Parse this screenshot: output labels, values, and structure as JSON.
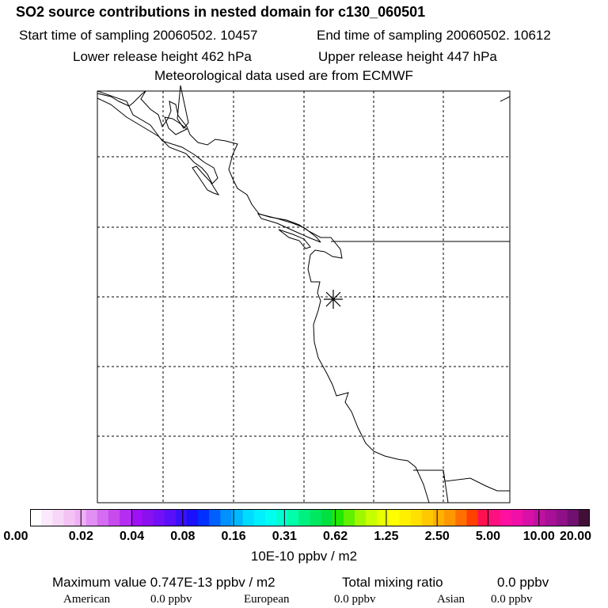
{
  "header": {
    "title": "SO2 source contributions in nested domain for c130_060501",
    "start_label": "Start time of sampling 20060502. 10457",
    "end_label": "End time of sampling 20060502. 10612",
    "lower_label": "Lower release height  462 hPa",
    "upper_label": "Upper release height  447 hPa",
    "met_label": "Meteorological data used are from ECMWF"
  },
  "map": {
    "marker": "asterisk-release-point",
    "line_color": "#000000"
  },
  "legend": {
    "colors": [
      "#ffffff",
      "#fbe9fb",
      "#f7d7f7",
      "#f3c3f3",
      "#efaff7",
      "#e28ff4",
      "#d56cf1",
      "#c84bee",
      "#b52df0",
      "#a010f5",
      "#8a10f0",
      "#7410f5",
      "#5a10f8",
      "#3a10fa",
      "#1a10fb",
      "#0030ff",
      "#0060ff",
      "#0090ff",
      "#00b8ff",
      "#00dcff",
      "#00f0ff",
      "#00fff0",
      "#00ffd0",
      "#00ffa8",
      "#00f080",
      "#00e860",
      "#00e040",
      "#20e800",
      "#60f000",
      "#a0f800",
      "#c8ff00",
      "#e8ff00",
      "#ffff00",
      "#fff000",
      "#ffe000",
      "#ffc800",
      "#ffb000",
      "#ff9800",
      "#ff7000",
      "#ff4000",
      "#ff1050",
      "#ff1080",
      "#ff10a0",
      "#f010a8",
      "#d810a8",
      "#c010a0",
      "#a81098",
      "#901088",
      "#701070",
      "#401038"
    ],
    "major_ticks": [
      "0.00",
      "0.02",
      "0.04",
      "0.08",
      "0.16",
      "0.31",
      "0.62",
      "1.25",
      "2.50",
      "5.00",
      "10.00",
      "20.00"
    ],
    "units": "10E-10 ppbv / m2"
  },
  "stats": {
    "max_label": "Maximum value  0.747E-13 ppbv / m2",
    "total_label": "Total mixing ratio",
    "total_value": "0.0 ppbv",
    "american_label": "American",
    "american_value": "0.0 ppbv",
    "european_label": "European",
    "european_value": "0.0 ppbv",
    "asian_label": "Asian",
    "asian_value": "0.0 ppbv"
  }
}
